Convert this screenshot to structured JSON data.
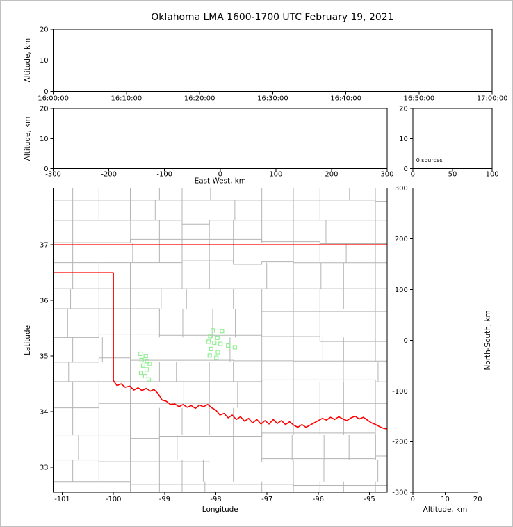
{
  "figure": {
    "title": "Oklahoma LMA 1600-1700 UTC February 19, 2021"
  },
  "colors": {
    "axis": "#000000",
    "text": "#000000",
    "county_lines": "#b4b4b4",
    "state_border": "#ff0000",
    "source_marker": "#90ee90",
    "background": "#ffffff",
    "frame_border": "#c0c0c0"
  },
  "chart_data": [
    {
      "id": "time_height",
      "type": "scatter",
      "title": "",
      "xlabel": "",
      "ylabel": "Altitude, km",
      "xlim": [
        0,
        6
      ],
      "xticks": [
        0,
        1,
        2,
        3,
        4,
        5,
        6
      ],
      "xtick_labels": [
        "16:00:00",
        "16:10:00",
        "16:20:00",
        "16:30:00",
        "16:40:00",
        "16:50:00",
        "17:00:00"
      ],
      "ylim": [
        0,
        20
      ],
      "yticks": [
        0,
        10,
        20
      ],
      "grid": false,
      "points": []
    },
    {
      "id": "ew_height",
      "type": "scatter",
      "xlabel": "East-West, km",
      "ylabel": "Altitude, km",
      "xlim": [
        -300,
        300
      ],
      "xticks": [
        -300,
        -200,
        -100,
        0,
        100,
        200,
        300
      ],
      "ylim": [
        0,
        20
      ],
      "yticks": [
        0,
        10,
        20
      ],
      "grid": false,
      "points": []
    },
    {
      "id": "source_histogram",
      "type": "scatter",
      "annotation": "0 sources",
      "xlim": [
        0,
        100
      ],
      "xticks": [
        0,
        50,
        100
      ],
      "ylim": [
        0,
        20
      ],
      "yticks": [
        0,
        10,
        20
      ],
      "grid": false,
      "points": []
    },
    {
      "id": "map",
      "type": "scatter",
      "xlabel": "Longitude",
      "ylabel": "Latitude",
      "xlim": [
        -101.175,
        -94.655
      ],
      "xticks": [
        -101,
        -100,
        -99,
        -98,
        -97,
        -96,
        -95
      ],
      "ylim": [
        32.55,
        38.02
      ],
      "yticks": [
        33,
        34,
        35,
        36,
        37
      ],
      "grid": false,
      "points": [
        [
          -99.47,
          35.04
        ],
        [
          -99.37,
          35.0
        ],
        [
          -99.45,
          34.93
        ],
        [
          -99.34,
          34.91
        ],
        [
          -99.29,
          34.86
        ],
        [
          -99.42,
          34.83
        ],
        [
          -99.35,
          34.76
        ],
        [
          -99.46,
          34.7
        ],
        [
          -99.38,
          34.64
        ],
        [
          -99.31,
          34.58
        ],
        [
          -98.06,
          35.46
        ],
        [
          -97.88,
          35.45
        ],
        [
          -98.11,
          35.36
        ],
        [
          -97.97,
          35.33
        ],
        [
          -98.14,
          35.26
        ],
        [
          -98.03,
          35.24
        ],
        [
          -97.91,
          35.22
        ],
        [
          -97.76,
          35.19
        ],
        [
          -97.63,
          35.16
        ],
        [
          -98.09,
          35.13
        ],
        [
          -97.96,
          35.07
        ],
        [
          -98.12,
          35.01
        ],
        [
          -97.99,
          34.97
        ]
      ]
    },
    {
      "id": "ns_height",
      "type": "scatter",
      "xlabel": "Altitude, km",
      "ylabel_right": "North-South, km",
      "xlim": [
        0,
        20
      ],
      "xticks": [
        0,
        10,
        20
      ],
      "ylim": [
        -300,
        300
      ],
      "yticks": [
        -300,
        -200,
        -100,
        0,
        100,
        200,
        300
      ],
      "grid": false,
      "points": []
    }
  ],
  "map_layers": {
    "kansas_border_lat": 37.0,
    "county_seed": 42,
    "state_border_path": [
      [
        -101.175,
        36.5
      ],
      [
        -100.0,
        36.5
      ],
      [
        -100.0,
        34.56
      ],
      [
        -99.93,
        34.47
      ],
      [
        -99.85,
        34.5
      ],
      [
        -99.77,
        34.44
      ],
      [
        -99.68,
        34.46
      ],
      [
        -99.6,
        34.39
      ],
      [
        -99.52,
        34.43
      ],
      [
        -99.44,
        34.38
      ],
      [
        -99.36,
        34.42
      ],
      [
        -99.28,
        34.37
      ],
      [
        -99.21,
        34.4
      ],
      [
        -99.13,
        34.33
      ],
      [
        -99.05,
        34.21
      ],
      [
        -98.97,
        34.19
      ],
      [
        -98.89,
        34.13
      ],
      [
        -98.8,
        34.14
      ],
      [
        -98.72,
        34.09
      ],
      [
        -98.64,
        34.13
      ],
      [
        -98.56,
        34.08
      ],
      [
        -98.48,
        34.11
      ],
      [
        -98.4,
        34.06
      ],
      [
        -98.32,
        34.12
      ],
      [
        -98.24,
        34.09
      ],
      [
        -98.16,
        34.13
      ],
      [
        -98.08,
        34.07
      ],
      [
        -98.0,
        34.03
      ],
      [
        -97.92,
        33.94
      ],
      [
        -97.84,
        33.97
      ],
      [
        -97.76,
        33.89
      ],
      [
        -97.68,
        33.94
      ],
      [
        -97.6,
        33.86
      ],
      [
        -97.52,
        33.91
      ],
      [
        -97.44,
        33.83
      ],
      [
        -97.36,
        33.88
      ],
      [
        -97.28,
        33.8
      ],
      [
        -97.2,
        33.86
      ],
      [
        -97.12,
        33.78
      ],
      [
        -97.04,
        33.84
      ],
      [
        -96.96,
        33.78
      ],
      [
        -96.88,
        33.86
      ],
      [
        -96.8,
        33.79
      ],
      [
        -96.72,
        33.84
      ],
      [
        -96.64,
        33.77
      ],
      [
        -96.56,
        33.82
      ],
      [
        -96.48,
        33.76
      ],
      [
        -96.4,
        33.72
      ],
      [
        -96.32,
        33.77
      ],
      [
        -96.24,
        33.72
      ],
      [
        -96.16,
        33.76
      ],
      [
        -96.08,
        33.8
      ],
      [
        -96.0,
        33.84
      ],
      [
        -95.92,
        33.88
      ],
      [
        -95.84,
        33.85
      ],
      [
        -95.76,
        33.9
      ],
      [
        -95.68,
        33.86
      ],
      [
        -95.6,
        33.91
      ],
      [
        -95.52,
        33.87
      ],
      [
        -95.44,
        33.84
      ],
      [
        -95.36,
        33.89
      ],
      [
        -95.28,
        33.92
      ],
      [
        -95.2,
        33.87
      ],
      [
        -95.12,
        33.9
      ],
      [
        -95.04,
        33.85
      ],
      [
        -94.96,
        33.8
      ],
      [
        -94.88,
        33.77
      ],
      [
        -94.8,
        33.73
      ],
      [
        -94.72,
        33.7
      ],
      [
        -94.655,
        33.69
      ]
    ]
  }
}
